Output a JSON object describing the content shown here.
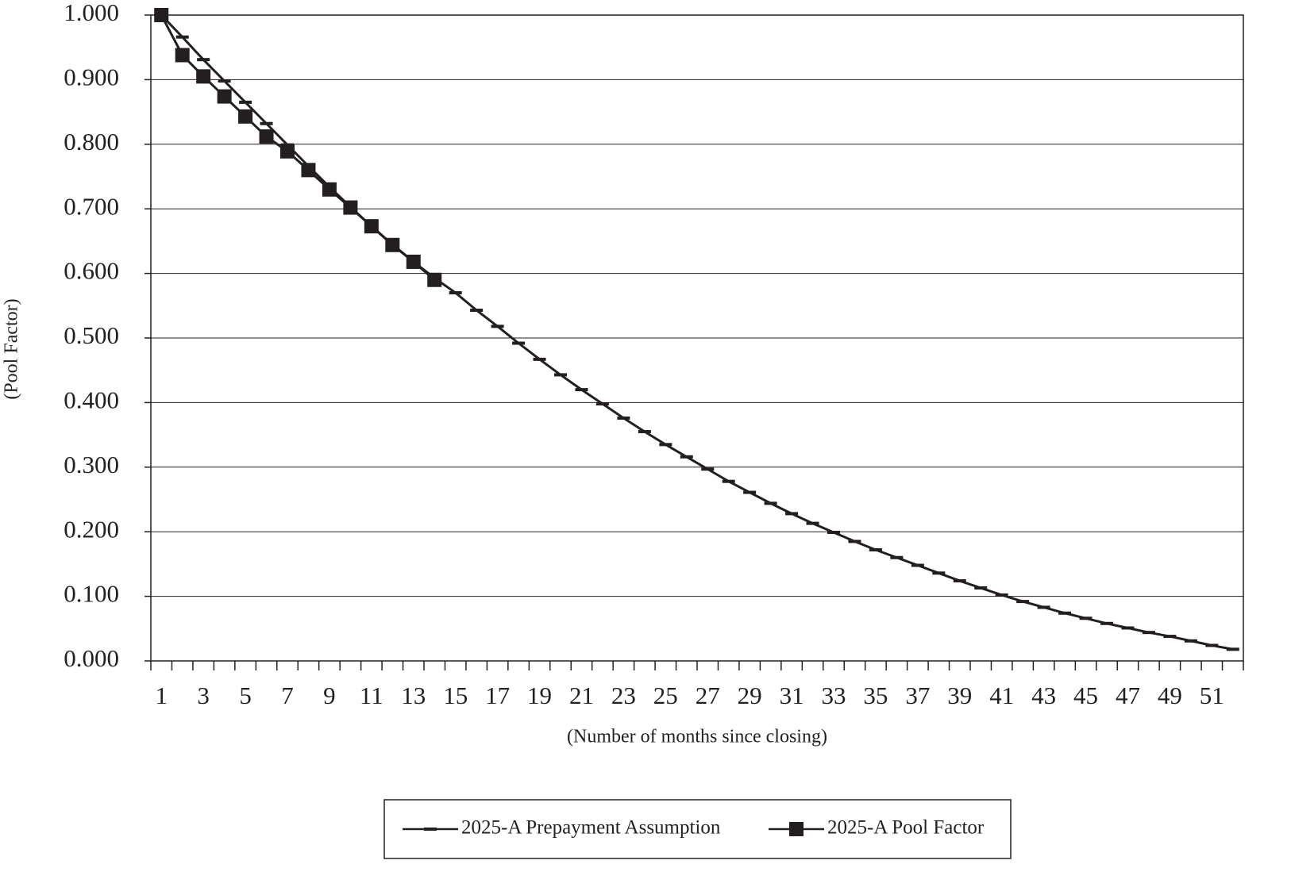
{
  "chart_data": {
    "type": "line",
    "y_label": "(Pool Factor)",
    "x_label": "(Number of months since closing)",
    "categories": [
      1,
      null,
      3,
      null,
      5,
      null,
      7,
      null,
      9,
      null,
      11,
      null,
      13,
      null,
      15,
      null,
      17,
      null,
      19,
      null,
      21,
      null,
      23,
      null,
      25,
      null,
      27,
      null,
      29,
      null,
      31,
      null,
      33,
      null,
      35,
      null,
      37,
      null,
      39,
      null,
      41,
      null,
      43,
      null,
      45,
      null,
      47,
      null,
      49,
      null,
      51,
      null
    ],
    "series": [
      {
        "name": "2025-A Prepayment Assumption",
        "color": "#231f20",
        "marker": "dash",
        "values": [
          1.0,
          0.966,
          0.931,
          0.898,
          0.865,
          0.832,
          0.799,
          0.766,
          0.734,
          0.703,
          0.673,
          0.645,
          0.618,
          0.593,
          0.57,
          0.543,
          0.518,
          0.492,
          0.467,
          0.443,
          0.42,
          0.398,
          0.376,
          0.355,
          0.335,
          0.316,
          0.297,
          0.278,
          0.261,
          0.244,
          0.228,
          0.213,
          0.199,
          0.185,
          0.172,
          0.16,
          0.148,
          0.136,
          0.124,
          0.113,
          0.102,
          0.092,
          0.083,
          0.074,
          0.066,
          0.058,
          0.051,
          0.044,
          0.038,
          0.031,
          0.024,
          0.018
        ]
      },
      {
        "name": "2025-A Pool Factor",
        "color": "#231f20",
        "marker": "square",
        "values": [
          1.0,
          0.938,
          0.905,
          0.874,
          0.843,
          0.812,
          0.789,
          0.76,
          0.73,
          0.702,
          0.673,
          0.644,
          0.618,
          0.59,
          null,
          null,
          null,
          null,
          null,
          null,
          null,
          null,
          null,
          null,
          null,
          null,
          null,
          null,
          null,
          null,
          null,
          null,
          null,
          null,
          null,
          null,
          null,
          null,
          null,
          null,
          null,
          null,
          null,
          null,
          null,
          null,
          null,
          null,
          null,
          null,
          null,
          null
        ]
      }
    ],
    "ylim": [
      0,
      1
    ],
    "yticks": [
      {
        "value": 0,
        "label": "0.000"
      },
      {
        "value": 0.1,
        "label": "0.100"
      },
      {
        "value": 0.2,
        "label": "0.200"
      },
      {
        "value": 0.3,
        "label": "0.300"
      },
      {
        "value": 0.4,
        "label": "0.400"
      },
      {
        "value": 0.5,
        "label": "0.500"
      },
      {
        "value": 0.6,
        "label": "0.600"
      },
      {
        "value": 0.7,
        "label": "0.700"
      },
      {
        "value": 0.8,
        "label": "0.800"
      },
      {
        "value": 0.9,
        "label": "0.900"
      },
      {
        "value": 1,
        "label": "1.000"
      }
    ],
    "grid": true,
    "legend": "bottom"
  }
}
